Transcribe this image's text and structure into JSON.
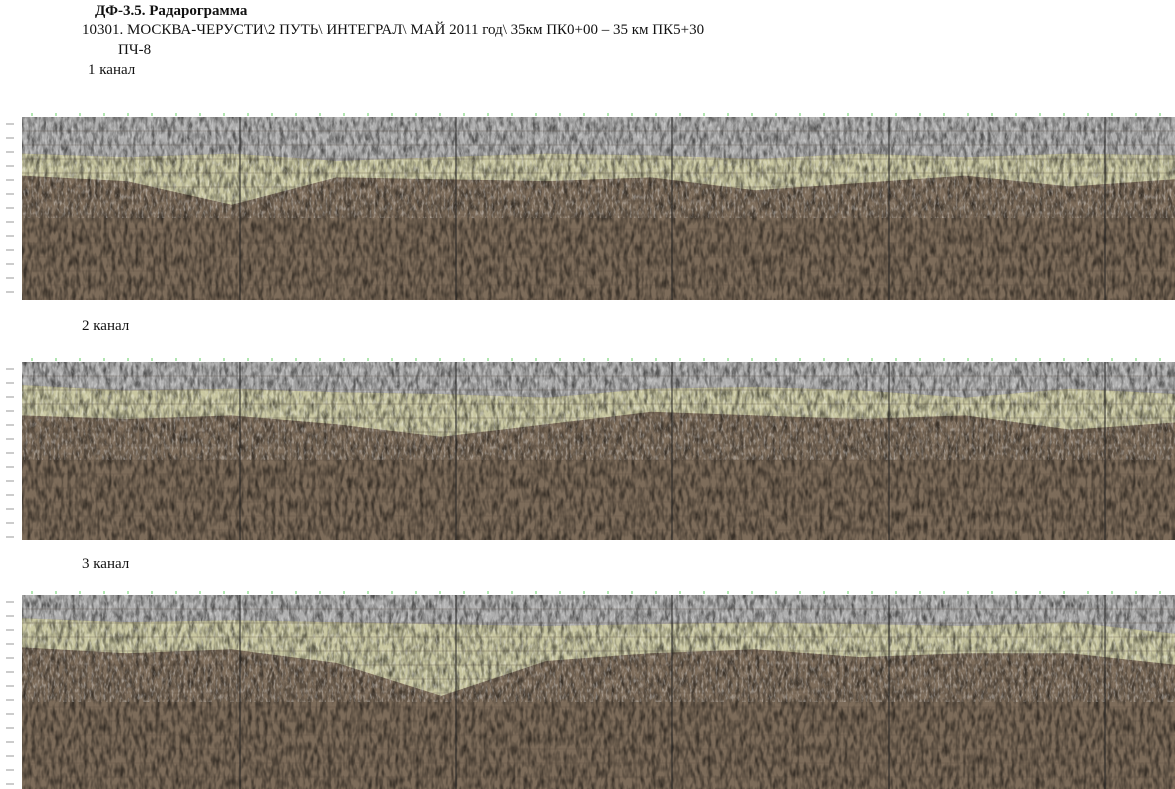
{
  "header": {
    "title": "ДФ-3.5. Радарограмма",
    "subtitle": "10301. МОСКВА-ЧЕРУСТИ\\2 ПУТЬ\\ ИНТЕГРАЛ\\ МАЙ 2011 год\\ 35км ПК0+00 – 35 км ПК5+30",
    "unit": "ПЧ-8"
  },
  "channels": [
    {
      "label": "1 канал"
    },
    {
      "label": "2 канал"
    },
    {
      "label": "3 канал"
    }
  ]
}
